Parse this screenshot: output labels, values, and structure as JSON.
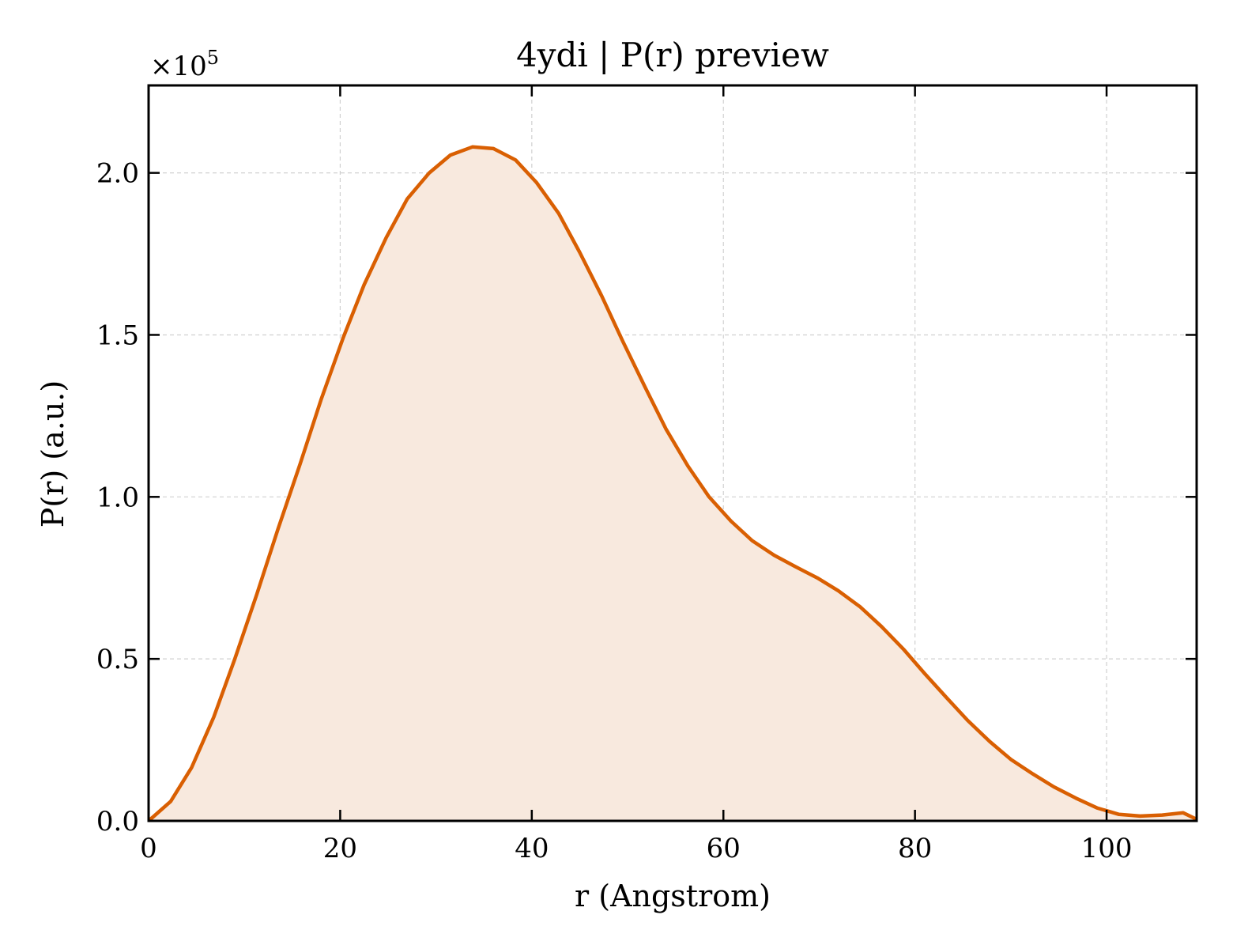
{
  "chart_data": {
    "type": "area",
    "title": "4ydi | P(r) preview",
    "xlabel": "r (Angstrom)",
    "ylabel": "P(r) (a.u.)",
    "y_multiplier": "×10",
    "y_multiplier_exponent": "5",
    "xlim": [
      0,
      109.4
    ],
    "ylim": [
      0,
      2.27
    ],
    "xticks": [
      0,
      20,
      40,
      60,
      80,
      100
    ],
    "xtick_labels": [
      "0",
      "20",
      "40",
      "60",
      "80",
      "100"
    ],
    "yticks": [
      0.0,
      0.5,
      1.0,
      1.5,
      2.0
    ],
    "ytick_labels": [
      "0.0",
      "0.5",
      "1.0",
      "1.5",
      "2.0"
    ],
    "grid": true,
    "line_color": "#d95f02",
    "fill_color": "#f8e9de",
    "series": [
      {
        "x": [
          0,
          2.3,
          4.5,
          6.8,
          9.0,
          11.3,
          13.5,
          15.8,
          18.0,
          20.3,
          22.5,
          24.8,
          27.0,
          29.3,
          31.5,
          33.8,
          36.0,
          38.3,
          40.5,
          42.8,
          45.0,
          47.3,
          49.5,
          51.8,
          54.0,
          56.3,
          58.5,
          60.8,
          63.0,
          65.3,
          67.5,
          69.8,
          72.0,
          74.3,
          76.5,
          78.8,
          81.0,
          83.3,
          85.5,
          87.8,
          90.0,
          92.3,
          94.5,
          96.8,
          99.0,
          101.3,
          103.5,
          105.8,
          108.0,
          109.4
        ],
        "y": [
          0.0,
          0.06,
          0.165,
          0.32,
          0.5,
          0.7,
          0.9,
          1.1,
          1.3,
          1.49,
          1.655,
          1.8,
          1.92,
          2.0,
          2.055,
          2.08,
          2.075,
          2.04,
          1.97,
          1.875,
          1.755,
          1.62,
          1.48,
          1.34,
          1.21,
          1.095,
          1.0,
          0.925,
          0.865,
          0.82,
          0.785,
          0.75,
          0.71,
          0.66,
          0.6,
          0.53,
          0.455,
          0.38,
          0.31,
          0.245,
          0.19,
          0.145,
          0.105,
          0.07,
          0.04,
          0.02,
          0.015,
          0.018,
          0.025,
          0.005
        ]
      }
    ]
  }
}
